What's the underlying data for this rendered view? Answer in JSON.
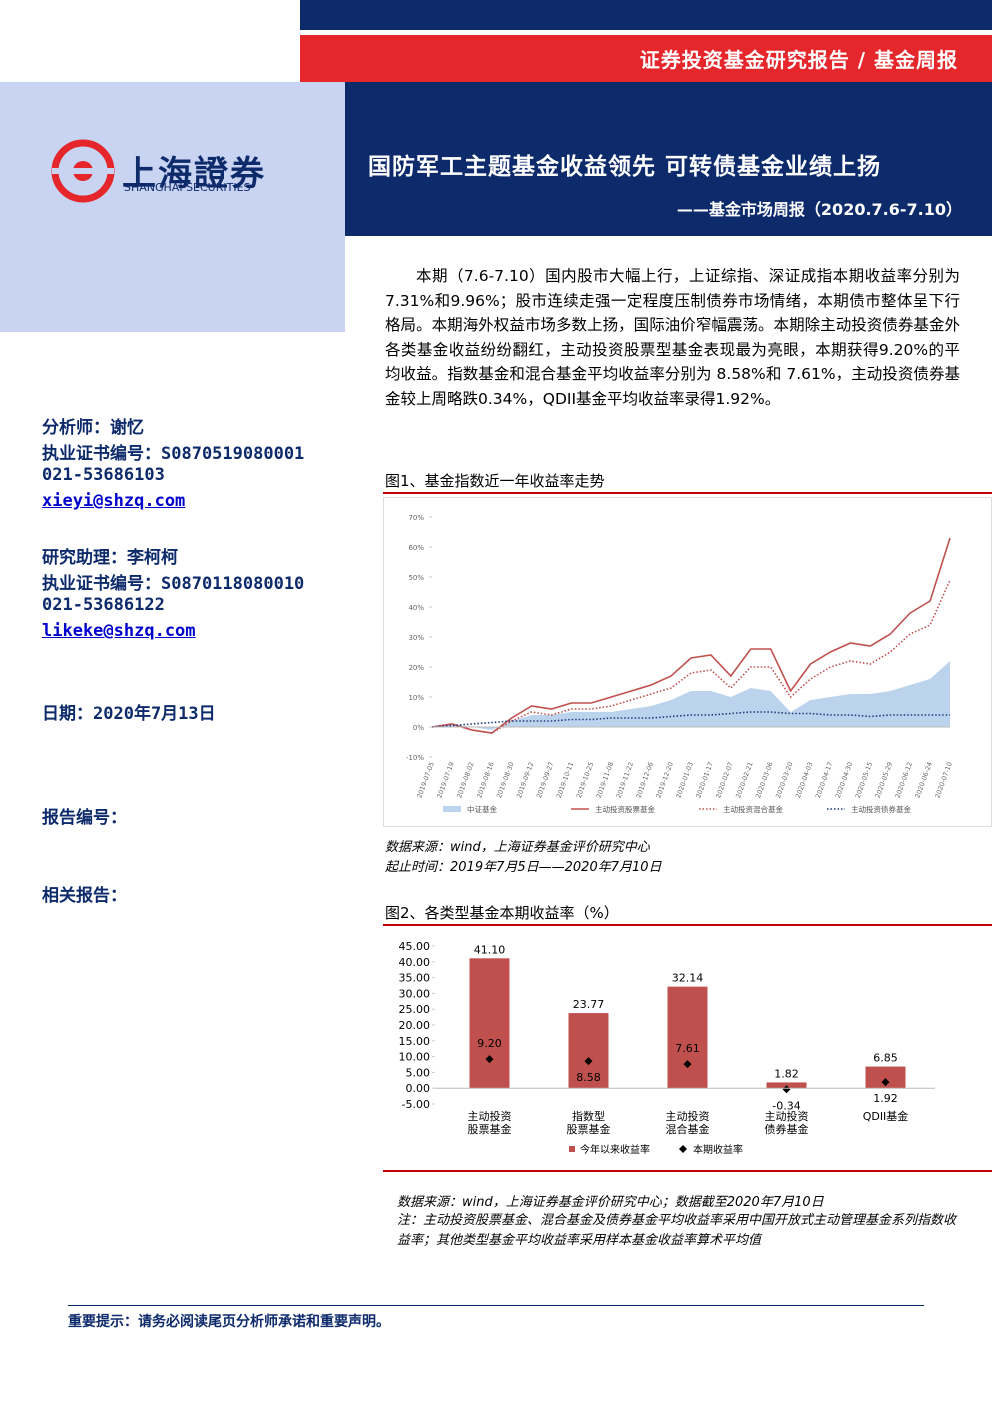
{
  "header": {
    "category": "证券投资基金研究报告 / 基金周报",
    "title": "国防军工主题基金收益领先 可转债基金业绩上扬",
    "subtitle": "——基金市场周报（2020.7.6-7.10）"
  },
  "logo": {
    "cn": "上海證券",
    "en": "SHANGHAI SECURITIES"
  },
  "sidebar": {
    "analyst": "分析师：谢忆",
    "analyst_cert": "执业证书编号：S0870519080001",
    "analyst_phone": "021-53686103",
    "analyst_email": "xieyi@shzq.com",
    "assistant": "研究助理：李柯柯",
    "assistant_cert": "执业证书编号：S0870118080010",
    "assistant_phone": "021-53686122",
    "assistant_email": "likeke@shzq.com",
    "date": "日期：2020年7月13日",
    "report_no": "报告编号：",
    "related": "相关报告："
  },
  "body": {
    "paragraph": "本期（7.6-7.10）国内股市大幅上行，上证综指、深证成指本期收益率分别为7.31%和9.96%；股市连续走强一定程度压制债券市场情绪，本期债市整体呈下行格局。本期海外权益市场多数上扬，国际油价窄幅震荡。本期除主动投资债券基金外各类基金收益纷纷翻红，主动投资股票型基金表现最为亮眼，本期获得9.20%的平均收益。指数基金和混合基金平均收益率分别为 8.58%和 7.61%，主动投资债券基金较上周略跌0.34%，QDII基金平均收益率录得1.92%。"
  },
  "figure1_source": "数据来源：wind，上海证券基金评价研究中心",
  "figure1_period": "起止时间：2019年7月5日——2020年7月10日",
  "figure2_source": "数据来源：wind，上海证券基金评价研究中心；数据截至2020年7月10日",
  "figure2_note": "注：主动投资股票基金、混合基金及债券基金平均收益率采用中国开放式主动管理基金系列指数收益率；其他类型基金平均收益率采用样本基金收益率算术平均值",
  "footer": "重要提示：请务必阅读尾页分析师承诺和重要声明。",
  "chart_data": [
    {
      "type": "line",
      "title": "图1、基金指数近一年收益率走势",
      "categories": [
        "2019-07-05",
        "2019-07-19",
        "2019-08-02",
        "2019-08-16",
        "2019-08-30",
        "2019-09-12",
        "2019-09-27",
        "2019-10-11",
        "2019-10-25",
        "2019-11-08",
        "2019-11-22",
        "2019-12-06",
        "2019-12-20",
        "2020-01-03",
        "2020-01-17",
        "2020-02-07",
        "2020-02-21",
        "2020-03-06",
        "2020-03-20",
        "2020-04-03",
        "2020-04-17",
        "2020-04-30",
        "2020-05-15",
        "2020-05-29",
        "2020-06-12",
        "2020-06-24",
        "2020-07-10"
      ],
      "series": [
        {
          "name": "中证基金",
          "color": "#bcd3ee",
          "style": "area",
          "values": [
            0,
            1,
            0,
            -1,
            2,
            4,
            4,
            5,
            5,
            5,
            6,
            7,
            9,
            12,
            12,
            10,
            13,
            12,
            5,
            9,
            10,
            11,
            11,
            12,
            14,
            16,
            22
          ]
        },
        {
          "name": "主动投资股票基金",
          "color": "#c0504d",
          "style": "solid",
          "values": [
            0,
            1,
            -1,
            -2,
            3,
            7,
            6,
            8,
            8,
            10,
            12,
            14,
            17,
            23,
            24,
            17,
            26,
            26,
            12,
            21,
            25,
            28,
            27,
            31,
            38,
            42,
            63
          ]
        },
        {
          "name": "主动投资混合基金",
          "color": "#c0504d",
          "style": "dotted",
          "values": [
            0,
            1,
            -1,
            -2,
            2,
            5,
            4,
            6,
            6,
            7,
            9,
            11,
            13,
            18,
            19,
            13,
            20,
            20,
            10,
            16,
            20,
            22,
            21,
            25,
            31,
            34,
            49
          ]
        },
        {
          "name": "主动投资债券基金",
          "color": "#1f3a7a",
          "style": "dotted",
          "values": [
            0,
            0.5,
            1,
            1.5,
            2,
            2,
            2,
            2.5,
            2.5,
            3,
            3,
            3,
            3.5,
            4,
            4,
            4.5,
            5,
            5,
            4.5,
            4.5,
            4,
            4,
            3.5,
            4,
            4,
            4,
            4
          ]
        }
      ],
      "ylim": [
        -10,
        70
      ],
      "yticks": [
        {
          "value": -10,
          "label": "-10%"
        },
        {
          "value": 0,
          "label": "0%"
        },
        {
          "value": 10,
          "label": "10%"
        },
        {
          "value": 20,
          "label": "20%"
        },
        {
          "value": 30,
          "label": "30%"
        },
        {
          "value": 40,
          "label": "40%"
        },
        {
          "value": 50,
          "label": "50%"
        },
        {
          "value": 60,
          "label": "60%"
        },
        {
          "value": 70,
          "label": "70%"
        }
      ],
      "legend": "bottom"
    },
    {
      "type": "bar",
      "title": "图2、各类型基金本期收益率（%）",
      "categories": [
        [
          "主动投资",
          "股票基金"
        ],
        [
          "指数型",
          "股票基金"
        ],
        [
          "主动投资",
          "混合基金"
        ],
        [
          "主动投资",
          "债券基金"
        ],
        [
          "QDII基金"
        ]
      ],
      "series": [
        {
          "name": "今年以来收益率",
          "color": "#c0504d",
          "values": [
            41.1,
            23.77,
            32.14,
            1.82,
            6.85
          ],
          "value_labels": [
            "41.10",
            "23.77",
            "32.14",
            "1.82",
            "6.85"
          ]
        },
        {
          "name": "本期收益率",
          "color": "#000000",
          "marker": "diamond",
          "values": [
            9.2,
            8.58,
            7.61,
            -0.34,
            1.92
          ],
          "value_labels": [
            "9.20",
            "8.58",
            "7.61",
            "-0.34",
            "1.92"
          ]
        }
      ],
      "ylim": [
        -5,
        45
      ],
      "yticks": [
        {
          "value": -5,
          "label": "-5.00"
        },
        {
          "value": 0,
          "label": "0.00"
        },
        {
          "value": 5,
          "label": "5.00"
        },
        {
          "value": 10,
          "label": "10.00"
        },
        {
          "value": 15,
          "label": "15.00"
        },
        {
          "value": 20,
          "label": "20.00"
        },
        {
          "value": 25,
          "label": "25.00"
        },
        {
          "value": 30,
          "label": "30.00"
        },
        {
          "value": 35,
          "label": "35.00"
        },
        {
          "value": 40,
          "label": "40.00"
        },
        {
          "value": 45,
          "label": "45.00"
        }
      ],
      "legend": "bottom"
    }
  ]
}
